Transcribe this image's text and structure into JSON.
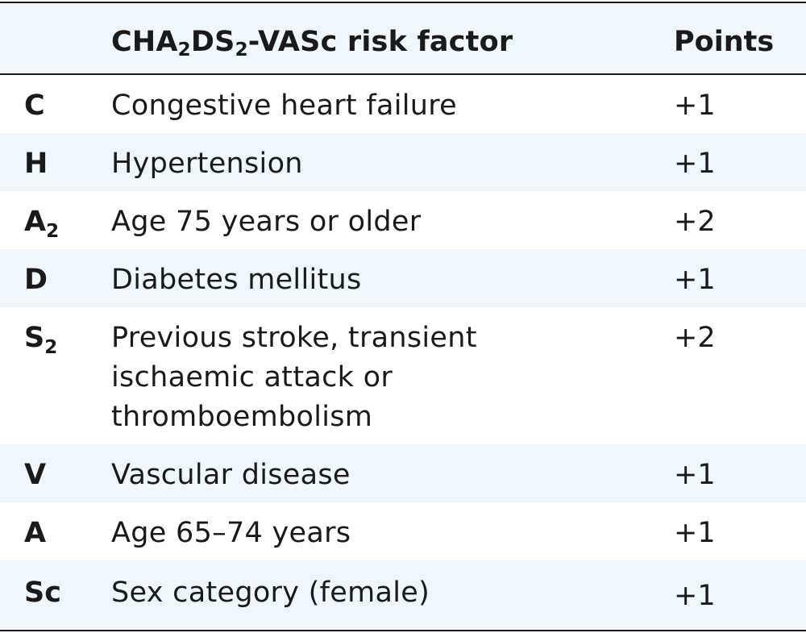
{
  "header": {
    "factor_prefix": "CHA",
    "factor_sub1": "2",
    "factor_mid": "DS",
    "factor_sub2": "2",
    "factor_suffix": "-VASc risk factor",
    "points": "Points"
  },
  "rows": [
    {
      "code": "C",
      "code_sub": "",
      "factor": "Congestive heart failure",
      "points": "+1"
    },
    {
      "code": "H",
      "code_sub": "",
      "factor": "Hypertension",
      "points": "+1"
    },
    {
      "code": "A",
      "code_sub": "2",
      "factor": "Age 75 years or older",
      "points": "+2"
    },
    {
      "code": "D",
      "code_sub": "",
      "factor": "Diabetes mellitus",
      "points": "+1"
    },
    {
      "code": "S",
      "code_sub": "2",
      "factor": "Previous stroke, transient\nischaemic attack or\nthromboembolism",
      "points": "+2"
    },
    {
      "code": "V",
      "code_sub": "",
      "factor": "Vascular disease",
      "points": "+1"
    },
    {
      "code": "A",
      "code_sub": "",
      "factor": "Age 65–74 years",
      "points": "+1"
    },
    {
      "code": "Sc",
      "code_sub": "",
      "factor": "Sex category (female)",
      "points": "+1"
    }
  ]
}
